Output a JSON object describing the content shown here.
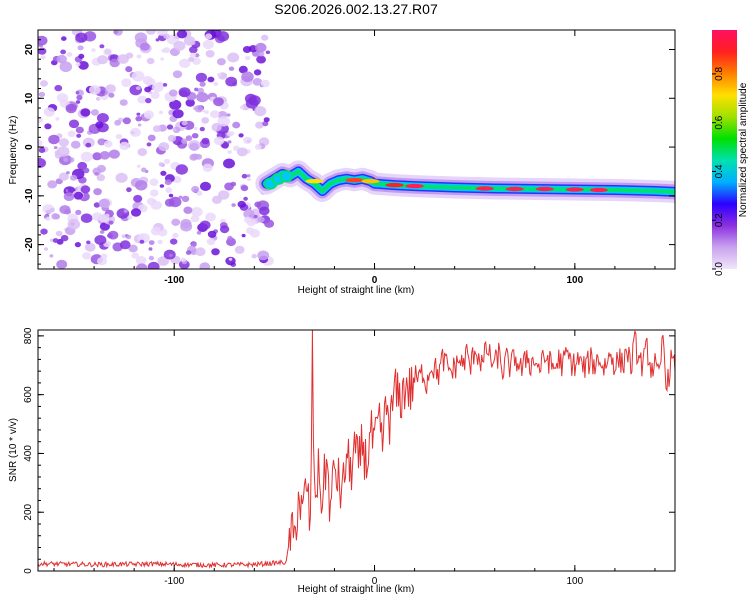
{
  "chart_data": [
    {
      "type": "heatmap",
      "title": "S206.2026.002.13.27.R07",
      "xlabel": "Height of straight line (km)",
      "ylabel": "Frequency (Hz)",
      "xlim": [
        -168,
        150
      ],
      "ylim": [
        -25,
        24
      ],
      "xticks": [
        -100,
        0,
        100
      ],
      "yticks": [
        -20,
        -10,
        0,
        10,
        20
      ],
      "noise_region_x": [
        -168,
        -54
      ],
      "signal_ridge": {
        "x": [
          -54,
          -50,
          -46,
          -42,
          -38,
          -34,
          -30,
          -26,
          -22,
          -18,
          -14,
          -10,
          -6,
          -2,
          0,
          10,
          20,
          40,
          60,
          80,
          100,
          120,
          140,
          150
        ],
        "y": [
          -7.5,
          -6.5,
          -5.5,
          -6.0,
          -5.0,
          -6.5,
          -7.5,
          -9.0,
          -7.5,
          -6.8,
          -6.5,
          -6.8,
          -6.5,
          -7.0,
          -7.5,
          -7.8,
          -8.0,
          -8.3,
          -8.5,
          -8.6,
          -8.7,
          -8.8,
          -9.0,
          -9.2
        ]
      },
      "colorbar": {
        "label": "Normalized spectral amplitude",
        "min": 0,
        "max": 0.98,
        "ticks": [
          "0.0",
          "0.2",
          "0.4",
          "0.6",
          "0.8"
        ],
        "tick_values": [
          0,
          0.2,
          0.4,
          0.6,
          0.8
        ],
        "colors": [
          "#f0e6fa",
          "#c9a3ef",
          "#8b2fe0",
          "#2b00ff",
          "#00b0ff",
          "#00e0b0",
          "#00e000",
          "#a0e000",
          "#ffe000",
          "#ff8000",
          "#ff2020",
          "#ff1060"
        ]
      }
    },
    {
      "type": "line",
      "xlabel": "Height of straight line (km)",
      "ylabel": "SNR (10 * v/v)",
      "xlim": [
        -168,
        150
      ],
      "ylim": [
        0,
        820
      ],
      "xticks": [
        -100,
        0,
        100
      ],
      "yticks": [
        0,
        200,
        400,
        600,
        800
      ],
      "series": [
        {
          "name": "SNR",
          "color": "#e03030",
          "x": [
            -168,
            -140,
            -110,
            -80,
            -60,
            -44,
            -42,
            -40,
            -38,
            -36,
            -34,
            -32,
            -31,
            -30,
            -28,
            -26,
            -24,
            -22,
            -20,
            -18,
            -16,
            -14,
            -12,
            -10,
            -8,
            -6,
            -4,
            -2,
            0,
            2,
            4,
            6,
            8,
            10,
            12,
            14,
            16,
            18,
            20,
            22,
            24,
            26,
            28,
            30,
            32,
            34,
            36,
            38,
            40,
            42,
            44,
            46,
            48,
            50,
            52,
            54,
            56,
            58,
            60,
            62,
            64,
            66,
            68,
            70,
            72,
            74,
            76,
            78,
            80,
            82,
            84,
            86,
            88,
            90,
            92,
            94,
            96,
            98,
            100,
            102,
            104,
            106,
            108,
            110,
            112,
            114,
            116,
            118,
            120,
            122,
            124,
            126,
            128,
            130,
            132,
            134,
            136,
            138,
            140,
            142,
            144,
            146,
            148,
            150
          ],
          "values": [
            25,
            22,
            24,
            20,
            22,
            30,
            130,
            100,
            260,
            180,
            300,
            150,
            740,
            260,
            330,
            240,
            380,
            200,
            360,
            300,
            260,
            400,
            330,
            420,
            350,
            440,
            360,
            470,
            420,
            500,
            440,
            560,
            500,
            620,
            580,
            600,
            640,
            610,
            660,
            650,
            680,
            640,
            700,
            690,
            670,
            720,
            700,
            680,
            690,
            720,
            700,
            740,
            690,
            760,
            730,
            700,
            760,
            720,
            700,
            740,
            680,
            720,
            690,
            730,
            700,
            680,
            740,
            700,
            720,
            690,
            710,
            730,
            700,
            690,
            720,
            700,
            740,
            710,
            700,
            720,
            690,
            700,
            720,
            700,
            730,
            690,
            710,
            740,
            700,
            720,
            700,
            760,
            690,
            780,
            720,
            700,
            760,
            690,
            700,
            650,
            800,
            620,
            720,
            680
          ]
        }
      ]
    }
  ]
}
